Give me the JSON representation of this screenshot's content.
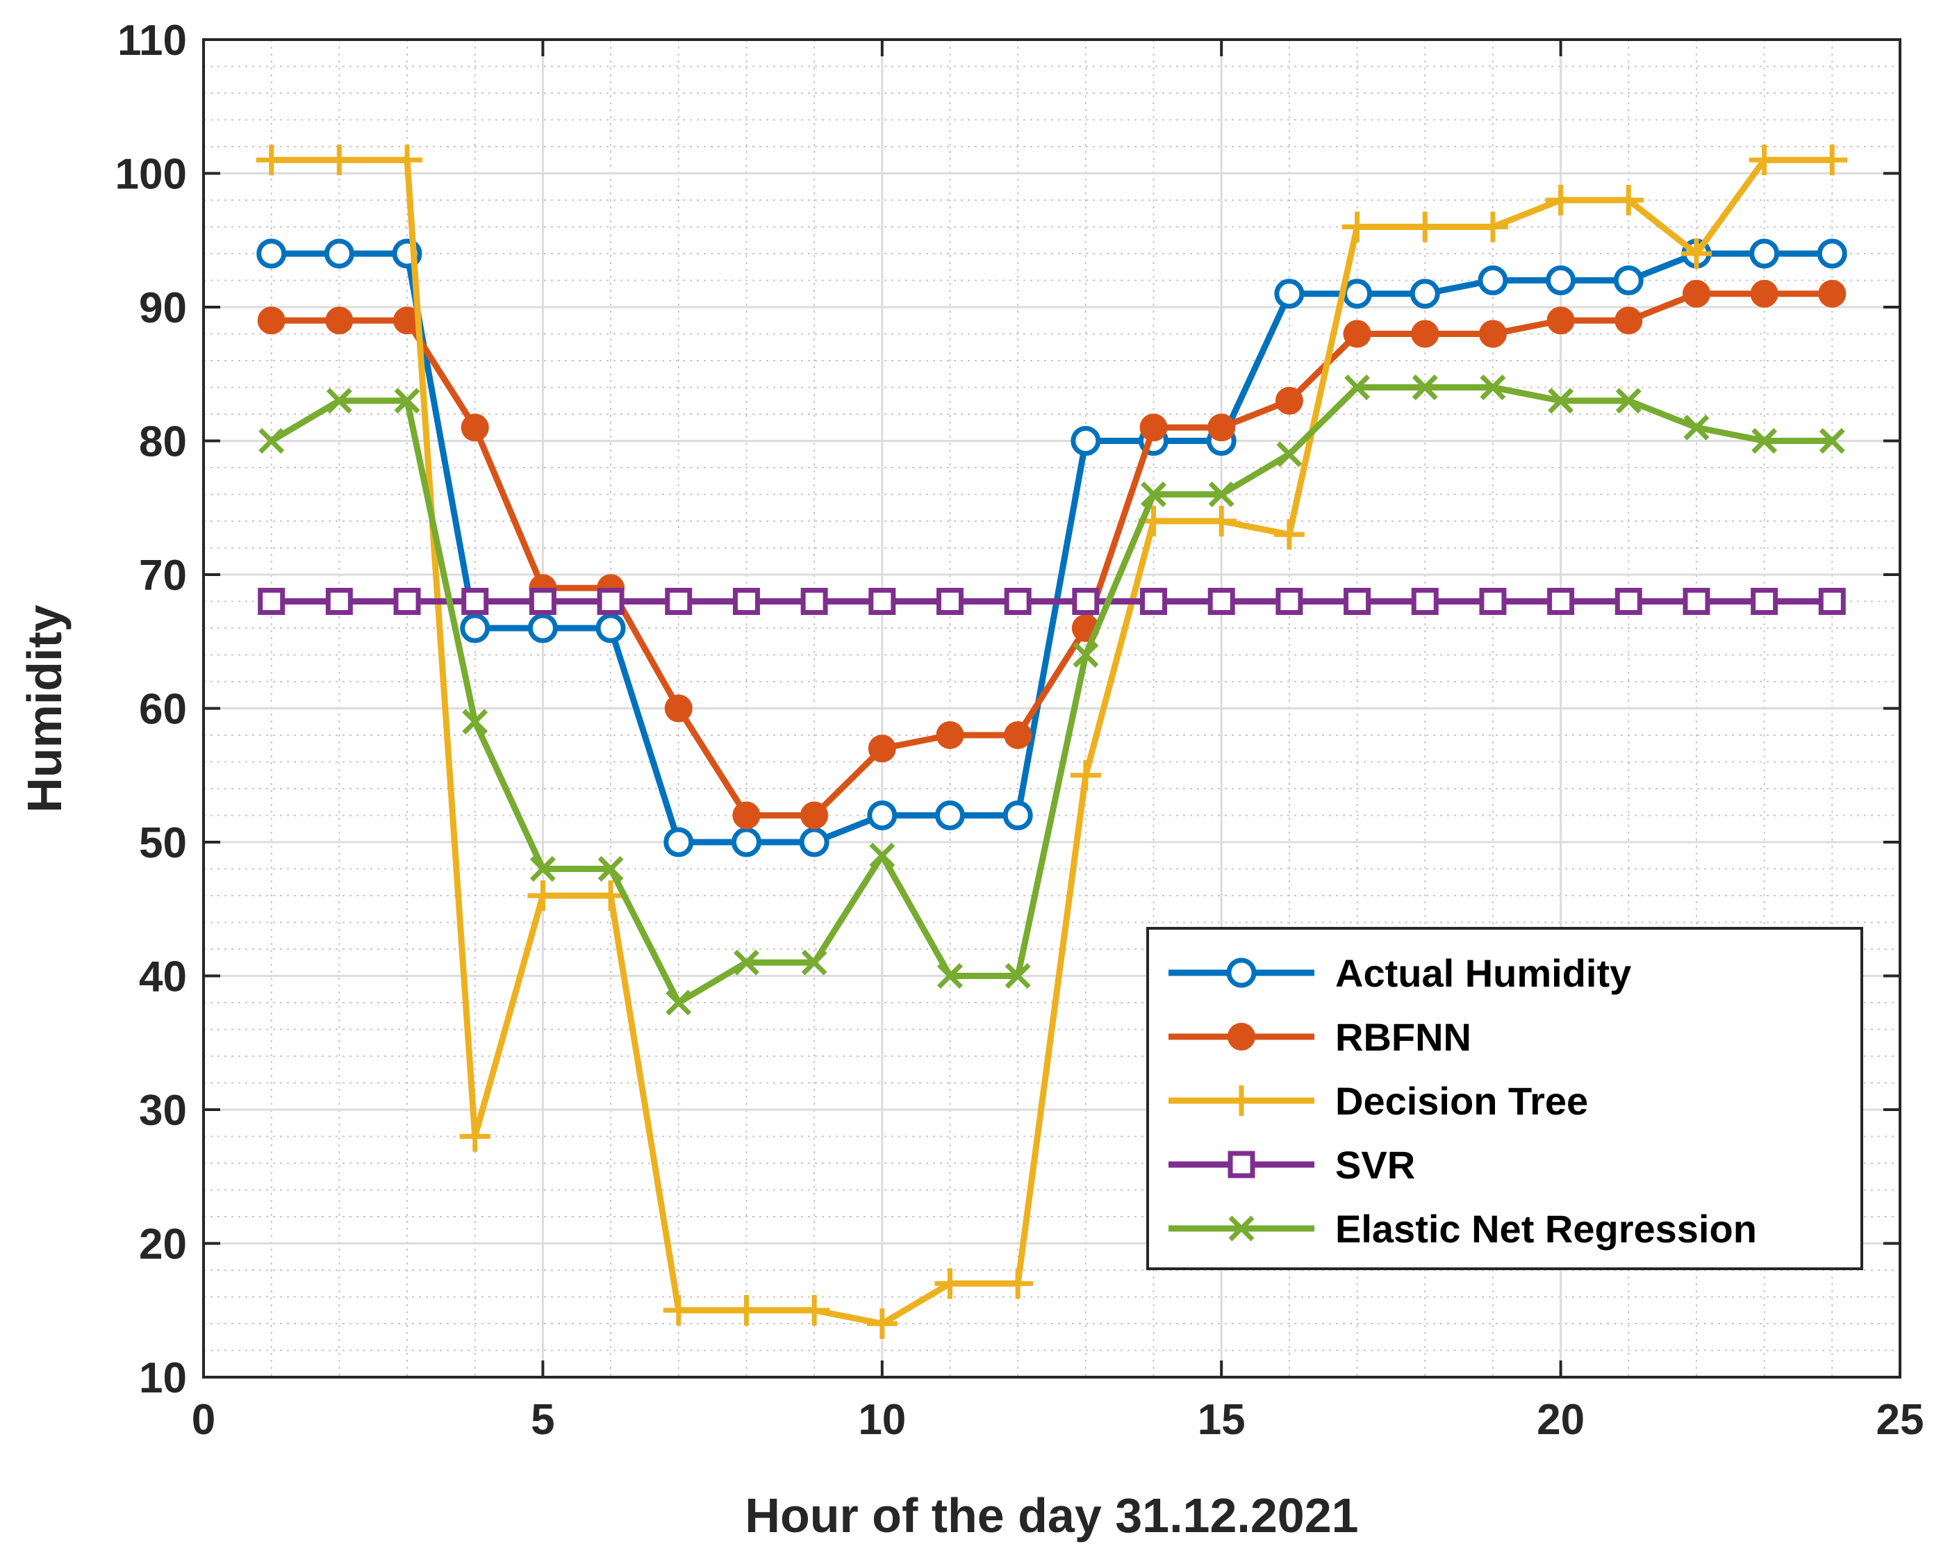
{
  "chart_data": {
    "type": "line",
    "title": "",
    "xlabel": "Hour of the day 31.12.2021",
    "ylabel": "Humidity",
    "xlim": [
      0,
      25
    ],
    "ylim": [
      10,
      110
    ],
    "xticks": [
      0,
      5,
      10,
      15,
      20,
      25
    ],
    "yticks": [
      10,
      20,
      30,
      40,
      50,
      60,
      70,
      80,
      90,
      100,
      110
    ],
    "grid": true,
    "legend_position": "lower-right",
    "x": [
      1,
      2,
      3,
      4,
      5,
      6,
      7,
      8,
      9,
      10,
      11,
      12,
      13,
      14,
      15,
      16,
      17,
      18,
      19,
      20,
      21,
      22,
      23,
      24
    ],
    "series": [
      {
        "name": "Actual Humidity",
        "color": "#0072BD",
        "marker": "circle-open",
        "values": [
          94,
          94,
          94,
          66,
          66,
          66,
          50,
          50,
          50,
          52,
          52,
          52,
          80,
          80,
          80,
          91,
          91,
          91,
          92,
          92,
          92,
          94,
          94,
          94
        ]
      },
      {
        "name": "RBFNN",
        "color": "#D95319",
        "marker": "circle-filled",
        "values": [
          89,
          89,
          89,
          81,
          69,
          69,
          60,
          52,
          52,
          57,
          58,
          58,
          66,
          81,
          81,
          83,
          88,
          88,
          88,
          89,
          89,
          91,
          91,
          91
        ]
      },
      {
        "name": "Decision Tree",
        "color": "#EDB120",
        "marker": "plus",
        "values": [
          101,
          101,
          101,
          28,
          46,
          46,
          15,
          15,
          15,
          14,
          17,
          17,
          55,
          74,
          74,
          73,
          96,
          96,
          96,
          98,
          98,
          94,
          101,
          101
        ]
      },
      {
        "name": "SVR",
        "color": "#7E2F8E",
        "marker": "square",
        "values": [
          68,
          68,
          68,
          68,
          68,
          68,
          68,
          68,
          68,
          68,
          68,
          68,
          68,
          68,
          68,
          68,
          68,
          68,
          68,
          68,
          68,
          68,
          68,
          68
        ]
      },
      {
        "name": "Elastic Net Regression",
        "color": "#77AC30",
        "marker": "x",
        "values": [
          80,
          83,
          83,
          59,
          48,
          48,
          38,
          41,
          41,
          49,
          40,
          40,
          64,
          76,
          76,
          79,
          84,
          84,
          84,
          83,
          83,
          81,
          80,
          80
        ]
      }
    ]
  }
}
